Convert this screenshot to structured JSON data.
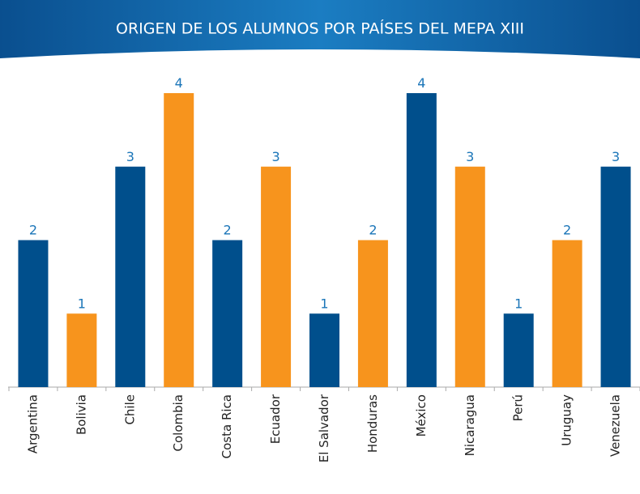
{
  "chart_data": {
    "type": "bar",
    "title": "ORIGEN DE LOS ALUMNOS POR PAÍSES DEL MEPA XIII",
    "categories": [
      "Argentina",
      "Bolivia",
      "Chile",
      "Colombia",
      "Costa Rica",
      "Ecuador",
      "El Salvador",
      "Honduras",
      "México",
      "Nicaragua",
      "Perú",
      "Uruguay",
      "Venezuela"
    ],
    "values": [
      2,
      1,
      3,
      4,
      2,
      3,
      1,
      2,
      4,
      3,
      1,
      2,
      3
    ],
    "colors": [
      "#004f8c",
      "#f7941d",
      "#004f8c",
      "#f7941d",
      "#004f8c",
      "#f7941d",
      "#004f8c",
      "#f7941d",
      "#004f8c",
      "#f7941d",
      "#004f8c",
      "#f7941d",
      "#004f8c"
    ]
  }
}
